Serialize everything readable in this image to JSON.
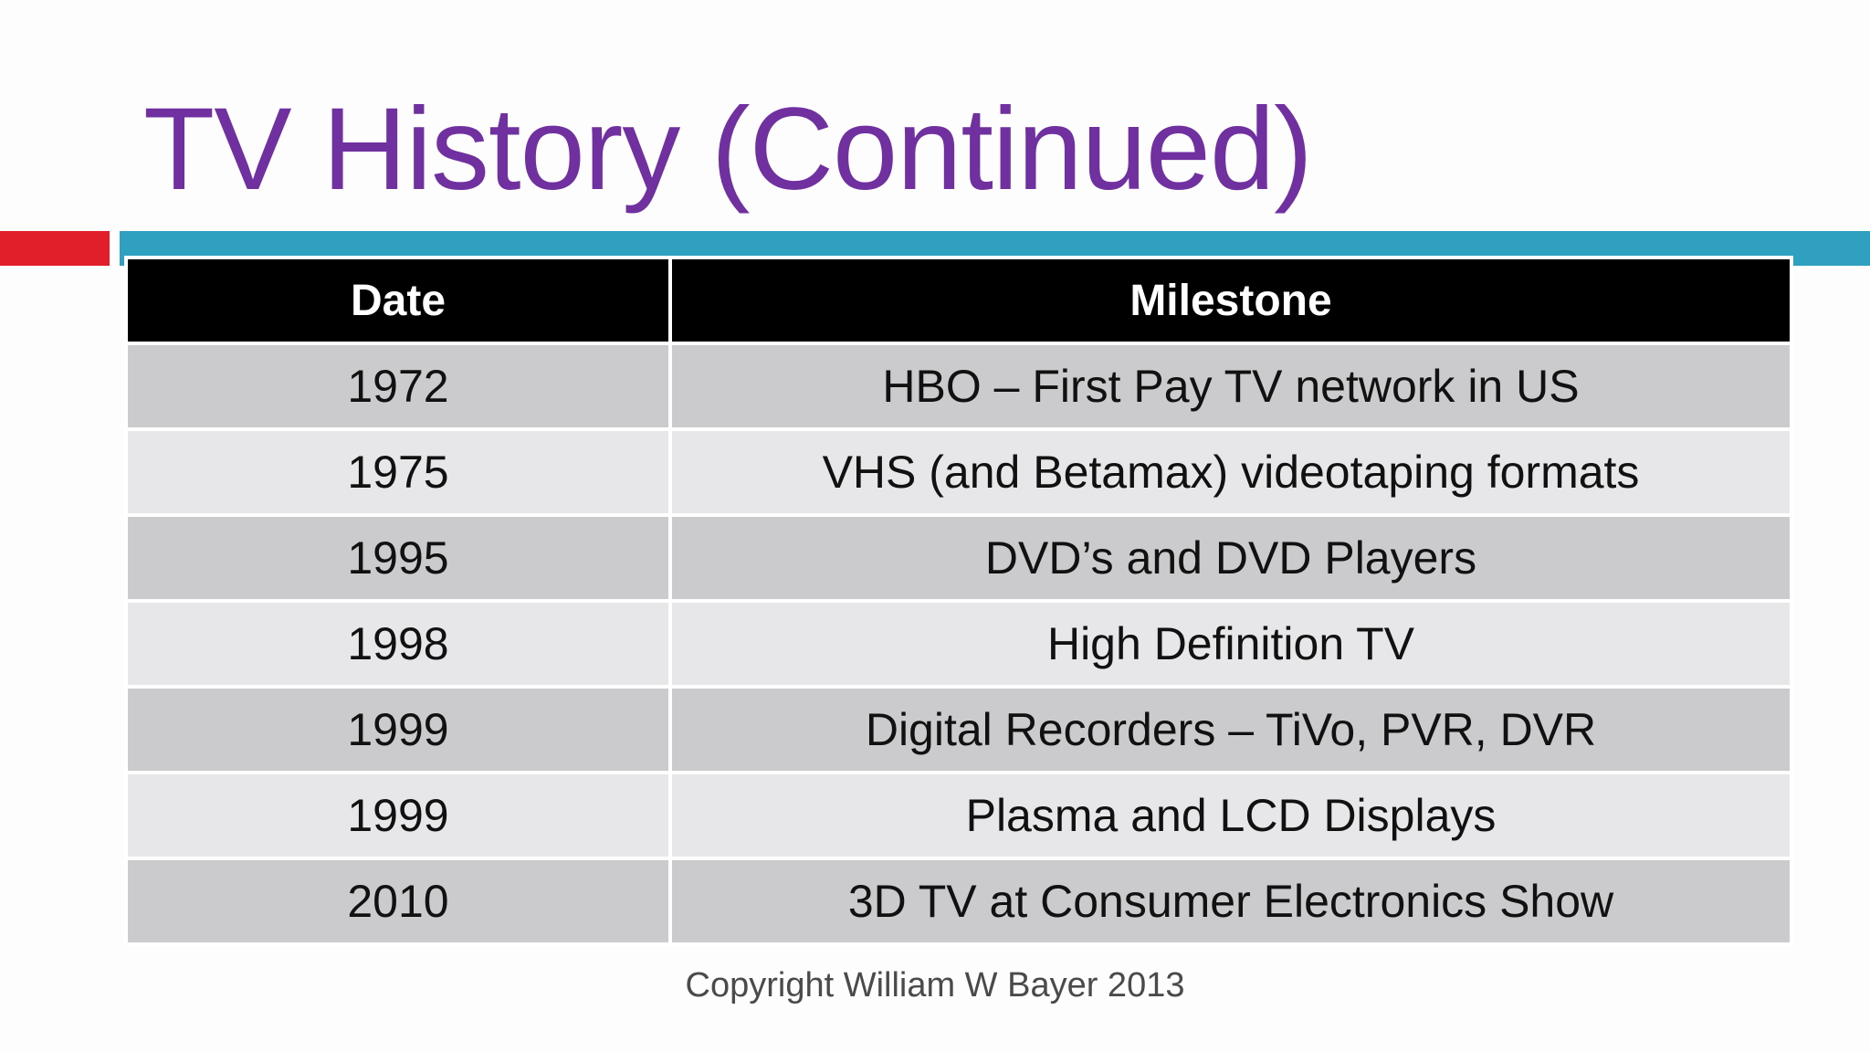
{
  "slide": {
    "title": "TV History (Continued)",
    "footer": "Copyright William W Bayer 2013"
  },
  "colors": {
    "title": "#7030a0",
    "accent_red": "#e01f2a",
    "accent_blue": "#30a0c0",
    "header_bg": "#000000",
    "row_dark": "#cbcacd",
    "row_light": "#e7e6e9"
  },
  "table": {
    "headers": [
      "Date",
      "Milestone"
    ],
    "rows": [
      [
        "1972",
        "HBO – First Pay TV network in US"
      ],
      [
        "1975",
        "VHS (and Betamax) videotaping formats"
      ],
      [
        "1995",
        "DVD’s and DVD Players"
      ],
      [
        "1998",
        "High Definition TV"
      ],
      [
        "1999",
        "Digital Recorders – TiVo, PVR, DVR"
      ],
      [
        "1999",
        "Plasma and LCD Displays"
      ],
      [
        "2010",
        "3D TV at Consumer Electronics Show"
      ]
    ]
  }
}
